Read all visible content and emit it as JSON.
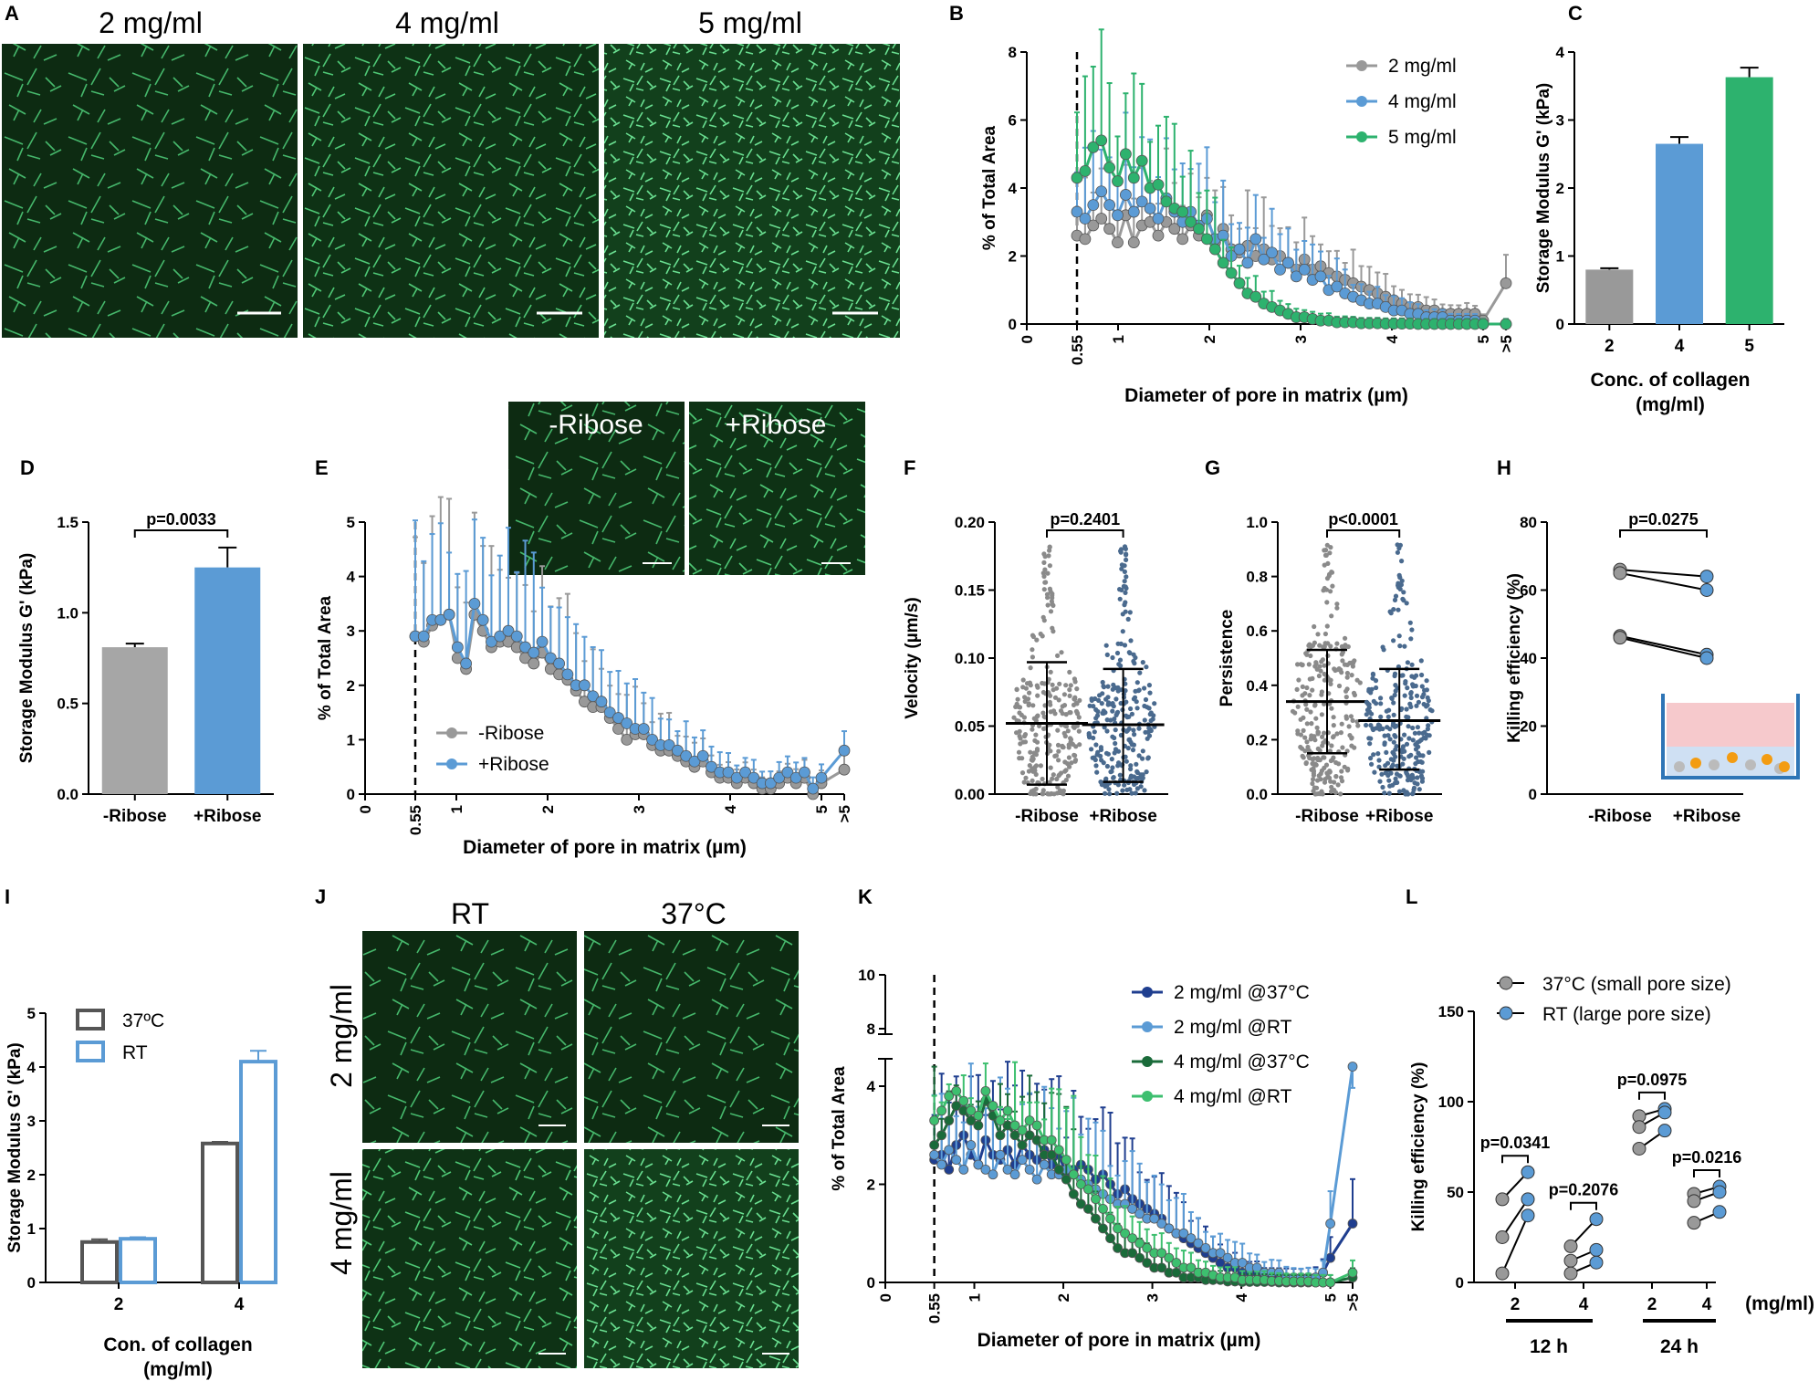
{
  "micro_labels": {
    "a_2": "2 mg/ml",
    "a_4": "4 mg/ml",
    "a_5": "5 mg/ml",
    "e_minus": "-Ribose",
    "e_plus": "+Ribose",
    "j_rt": "RT",
    "j_37": "37°C",
    "j_row2": "2 mg/ml",
    "j_row4": "4 mg/ml"
  },
  "chart_data": [
    {
      "panel": "B",
      "type": "line",
      "ylabel": "% of Total Area",
      "xlabel": "Diameter of pore in matrix (µm)",
      "ylim": [
        0,
        8
      ],
      "yticks": [
        0,
        2,
        4,
        6,
        8
      ],
      "xticks": [
        "0",
        "0.55",
        "1",
        "2",
        "3",
        "4",
        "5",
        ">5"
      ],
      "dashed_at": 0.55,
      "series": [
        {
          "name": "2 mg/ml",
          "color": "#999999",
          "values": [
            2.6,
            2.5,
            2.9,
            3.1,
            2.8,
            2.4,
            3.2,
            2.4,
            2.9,
            3.0,
            2.6,
            3.0,
            2.8,
            2.5,
            2.9,
            2.6,
            3.2,
            2.4,
            2.8,
            2.2,
            2.1,
            2.3,
            2.0,
            2.2,
            1.9,
            2.0,
            1.8,
            1.6,
            1.9,
            1.6,
            1.7,
            1.5,
            1.4,
            1.3,
            1.2,
            1.1,
            1.0,
            0.9,
            0.8,
            0.7,
            0.6,
            0.5,
            0.5,
            0.4,
            0.4,
            0.3,
            0.3,
            0.3,
            0.3,
            0.3,
            0.1,
            1.2
          ]
        },
        {
          "name": "4 mg/ml",
          "color": "#5b9bd5",
          "values": [
            3.3,
            3.1,
            3.5,
            3.9,
            3.5,
            3.2,
            3.8,
            3.3,
            3.6,
            3.4,
            3.1,
            3.7,
            3.3,
            3.0,
            3.3,
            2.9,
            3.1,
            2.5,
            2.6,
            2.0,
            2.2,
            1.8,
            2.5,
            1.9,
            2.1,
            1.6,
            1.8,
            1.4,
            1.6,
            1.3,
            1.4,
            1.0,
            1.1,
            0.9,
            0.8,
            0.7,
            0.6,
            0.6,
            0.5,
            0.4,
            0.4,
            0.3,
            0.3,
            0.2,
            0.2,
            0.2,
            0.1,
            0.1,
            0.1,
            0.1,
            0.0,
            0.0
          ]
        },
        {
          "name": "5 mg/ml",
          "color": "#2db26e",
          "values": [
            4.3,
            4.5,
            5.2,
            5.4,
            4.6,
            4.2,
            5.0,
            4.3,
            4.8,
            4.0,
            4.1,
            3.6,
            3.4,
            3.3,
            3.0,
            2.8,
            2.5,
            2.2,
            1.8,
            1.5,
            1.2,
            0.9,
            0.8,
            0.6,
            0.5,
            0.4,
            0.3,
            0.2,
            0.2,
            0.15,
            0.1,
            0.1,
            0.05,
            0.05,
            0.05,
            0.02,
            0.02,
            0.02,
            0.01,
            0.01,
            0.01,
            0.01,
            0.0,
            0.0,
            0.0,
            0.0,
            0.0,
            0.0,
            0.0,
            0.0,
            0.0,
            0.0
          ]
        }
      ]
    },
    {
      "panel": "C",
      "type": "bar",
      "ylabel": "Storage Modulus G' (kPa)",
      "xlabel": "Conc. of collagen",
      "xlabel2": "(mg/ml)",
      "categories": [
        "2",
        "4",
        "5"
      ],
      "values": [
        0.8,
        2.65,
        3.63
      ],
      "errors": [
        0.02,
        0.1,
        0.14
      ],
      "colors": [
        "#999999",
        "#5b9bd5",
        "#2db26e"
      ],
      "ylim": [
        0,
        4
      ],
      "yticks": [
        0,
        1,
        2,
        3,
        4
      ]
    },
    {
      "panel": "D",
      "type": "bar",
      "ylabel": "Storage Modulus G' (kPa)",
      "categories": [
        "-Ribose",
        "+Ribose"
      ],
      "values": [
        0.81,
        1.25
      ],
      "errors": [
        0.02,
        0.11
      ],
      "colors": [
        "#a6a6a6",
        "#5b9bd5"
      ],
      "ylim": [
        0,
        1.5
      ],
      "yticks": [
        0.0,
        0.5,
        1.0,
        1.5
      ],
      "pvalue": "p=0.0033"
    },
    {
      "panel": "E",
      "type": "line",
      "ylabel": "% of Total Area",
      "xlabel": "Diameter of pore in matrix (µm)",
      "ylim": [
        0,
        5
      ],
      "yticks": [
        0,
        1,
        2,
        3,
        4,
        5
      ],
      "xticks": [
        "0",
        "0.55",
        "1",
        "2",
        "3",
        "4",
        "5",
        ">5"
      ],
      "dashed_at": 0.55,
      "series": [
        {
          "name": "-Ribose",
          "color": "#999999",
          "values": [
            2.9,
            2.8,
            3.1,
            3.2,
            3.3,
            2.5,
            2.3,
            3.3,
            3.0,
            2.7,
            2.8,
            2.8,
            2.7,
            2.5,
            2.4,
            2.6,
            2.3,
            2.2,
            2.1,
            1.9,
            1.7,
            1.6,
            1.6,
            1.4,
            1.2,
            1.0,
            1.1,
            1.1,
            0.9,
            0.8,
            0.8,
            0.7,
            0.6,
            0.5,
            0.6,
            0.4,
            0.3,
            0.3,
            0.2,
            0.3,
            0.2,
            0.1,
            0.1,
            0.2,
            0.3,
            0.2,
            0.3,
            0.0,
            0.2,
            0.45
          ]
        },
        {
          "name": "+Ribose",
          "color": "#5b9bd5",
          "values": [
            2.9,
            2.9,
            3.2,
            3.2,
            3.3,
            2.7,
            2.4,
            3.5,
            3.2,
            2.8,
            2.9,
            3.0,
            2.9,
            2.7,
            2.6,
            2.8,
            2.5,
            2.4,
            2.2,
            2.0,
            2.0,
            1.8,
            1.7,
            1.5,
            1.4,
            1.3,
            1.2,
            1.2,
            1.0,
            0.9,
            0.9,
            0.8,
            0.7,
            0.6,
            0.7,
            0.5,
            0.4,
            0.4,
            0.3,
            0.4,
            0.3,
            0.2,
            0.2,
            0.3,
            0.4,
            0.3,
            0.4,
            0.1,
            0.3,
            0.8
          ]
        }
      ]
    },
    {
      "panel": "F",
      "type": "scatter",
      "ylabel": "Velocity (µm/s)",
      "categories": [
        "-Ribose",
        "+Ribose"
      ],
      "ylim": [
        0,
        0.2
      ],
      "yticks": [
        "0.00",
        "0.05",
        "0.10",
        "0.15",
        "0.20"
      ],
      "means": [
        0.052,
        0.051
      ],
      "sd_upper": [
        0.097,
        0.092
      ],
      "sd_lower": [
        0.007,
        0.009
      ],
      "pvalue": "p=0.2401"
    },
    {
      "panel": "G",
      "type": "scatter",
      "ylabel": "Persistence",
      "categories": [
        "-Ribose",
        "+Ribose"
      ],
      "ylim": [
        0,
        1.0
      ],
      "yticks": [
        "0.0",
        "0.2",
        "0.4",
        "0.6",
        "0.8",
        "1.0"
      ],
      "means": [
        0.34,
        0.27
      ],
      "sd_upper": [
        0.53,
        0.46
      ],
      "sd_lower": [
        0.15,
        0.09
      ],
      "pvalue": "p<0.0001"
    },
    {
      "panel": "H",
      "type": "scatter",
      "ylabel": "Killing efficiency (%)",
      "categories": [
        "-Ribose",
        "+Ribose"
      ],
      "ylim": [
        0,
        80
      ],
      "yticks": [
        0,
        20,
        40,
        60,
        80
      ],
      "pairs": [
        [
          66,
          64
        ],
        [
          65,
          60
        ],
        [
          46.5,
          41
        ],
        [
          46,
          40
        ]
      ],
      "pvalue": "p=0.0275"
    },
    {
      "panel": "I",
      "type": "bar",
      "ylabel": "Storage Modulus G' (kPa)",
      "xlabel": "Con. of collagen",
      "xlabel2": "(mg/ml)",
      "categories": [
        "2",
        "4"
      ],
      "ylim": [
        0,
        5
      ],
      "yticks": [
        0,
        1,
        2,
        3,
        4,
        5
      ],
      "series": [
        {
          "name": "37ºC",
          "color": "#555555",
          "values": [
            0.75,
            2.58
          ],
          "errors": [
            0.05,
            0.03
          ]
        },
        {
          "name": "RT",
          "color": "#5b9bd5",
          "values": [
            0.81,
            4.1
          ],
          "errors": [
            0.03,
            0.2
          ]
        }
      ],
      "legend_sup": "o"
    },
    {
      "panel": "K",
      "type": "line",
      "ylabel": "% of Total Area",
      "xlabel": "Diameter of pore in matrix (µm)",
      "yticks_low": [
        0,
        2,
        4
      ],
      "yticks_high": [
        8,
        10
      ],
      "xticks": [
        "0",
        "0.55",
        "1",
        "2",
        "3",
        "4",
        "5",
        ">5"
      ],
      "dashed_at": 0.55,
      "series": [
        {
          "name": "2 mg/ml @37°C",
          "color": "#1f3e8f",
          "values": [
            2.5,
            2.6,
            2.3,
            2.8,
            3.0,
            2.6,
            2.4,
            2.9,
            2.6,
            2.5,
            2.7,
            2.4,
            2.8,
            2.6,
            2.5,
            2.7,
            2.4,
            2.6,
            2.2,
            2.3,
            2.4,
            2.3,
            2.1,
            2.2,
            2.0,
            1.8,
            1.9,
            1.7,
            1.6,
            1.5,
            1.4,
            1.3,
            1.1,
            1.0,
            0.9,
            0.8,
            0.7,
            0.6,
            0.5,
            0.4,
            0.3,
            0.3,
            0.2,
            0.2,
            0.2,
            0.1,
            0.1,
            0.1,
            0.1,
            0.1,
            0.1,
            0.1,
            0.1,
            0.2,
            0.5,
            1.2
          ]
        },
        {
          "name": "2 mg/ml @RT",
          "color": "#5b9bd5",
          "values": [
            2.6,
            2.4,
            2.7,
            2.5,
            2.3,
            2.8,
            2.4,
            2.3,
            2.2,
            2.6,
            2.3,
            2.2,
            2.5,
            2.3,
            2.1,
            2.4,
            2.2,
            2.2,
            2.3,
            2.2,
            2.1,
            2.0,
            1.9,
            1.8,
            1.7,
            1.6,
            1.6,
            1.5,
            1.4,
            1.3,
            1.3,
            1.2,
            1.1,
            1.0,
            1.0,
            0.9,
            0.8,
            0.7,
            0.6,
            0.6,
            0.5,
            0.4,
            0.4,
            0.3,
            0.3,
            0.2,
            0.2,
            0.2,
            0.1,
            0.1,
            0.1,
            0.1,
            0.1,
            0.2,
            1.2,
            4.4
          ]
        },
        {
          "name": "4 mg/ml @37°C",
          "color": "#1a6b3a",
          "values": [
            2.8,
            3.0,
            3.3,
            3.6,
            3.5,
            3.3,
            3.2,
            3.7,
            3.4,
            3.0,
            3.2,
            3.0,
            2.8,
            3.0,
            2.9,
            2.6,
            2.6,
            2.3,
            2.1,
            1.8,
            1.6,
            1.5,
            1.3,
            1.1,
            0.9,
            0.7,
            0.6,
            0.6,
            0.5,
            0.4,
            0.3,
            0.3,
            0.2,
            0.2,
            0.1,
            0.1,
            0.1,
            0.05,
            0.05,
            0.05,
            0.02,
            0.02,
            0.01,
            0.01,
            0.01,
            0.01,
            0.01,
            0.0,
            0.0,
            0.0,
            0.0,
            0.0,
            0.0,
            0.0,
            0.0,
            0.1
          ]
        },
        {
          "name": "4 mg/ml @RT",
          "color": "#3dbf6f",
          "values": [
            3.3,
            3.5,
            3.8,
            3.9,
            3.7,
            3.5,
            3.4,
            3.9,
            3.6,
            3.3,
            3.5,
            3.2,
            3.1,
            3.3,
            3.2,
            2.9,
            2.9,
            2.7,
            2.5,
            2.2,
            2.0,
            1.9,
            1.7,
            1.5,
            1.3,
            1.1,
            1.0,
            0.9,
            0.8,
            0.7,
            0.6,
            0.6,
            0.5,
            0.4,
            0.3,
            0.3,
            0.2,
            0.2,
            0.15,
            0.1,
            0.1,
            0.1,
            0.05,
            0.05,
            0.05,
            0.05,
            0.03,
            0.03,
            0.02,
            0.02,
            0.02,
            0.02,
            0.0,
            0.0,
            0.0,
            0.2
          ]
        }
      ]
    },
    {
      "panel": "L",
      "type": "scatter",
      "ylabel": "Killing efficiency (%)",
      "ylim": [
        0,
        150
      ],
      "yticks": [
        0,
        50,
        100,
        150
      ],
      "legend": [
        "37°C (small pore size)",
        "RT (large pore size)"
      ],
      "groups": [
        {
          "label": "2",
          "pairs": [
            [
              46,
              61
            ],
            [
              25,
              46
            ],
            [
              5,
              37
            ]
          ],
          "pvalue": "p=0.0341"
        },
        {
          "label": "4",
          "pairs": [
            [
              20,
              35
            ],
            [
              12,
              18
            ],
            [
              5,
              11
            ]
          ],
          "pvalue": "p=0.2076"
        },
        {
          "label": "2",
          "pairs": [
            [
              92,
              96
            ],
            [
              86,
              94
            ],
            [
              74,
              84
            ]
          ],
          "pvalue": "p=0.0975"
        },
        {
          "label": "4",
          "pairs": [
            [
              49,
              53
            ],
            [
              45,
              50
            ],
            [
              33,
              39
            ]
          ],
          "pvalue": "p=0.0216"
        }
      ],
      "time_labels": [
        "12 h",
        "24 h"
      ],
      "units": "(mg/ml)"
    }
  ],
  "panel_letters": [
    "A",
    "B",
    "C",
    "D",
    "E",
    "F",
    "G",
    "H",
    "I",
    "J",
    "K",
    "L"
  ]
}
